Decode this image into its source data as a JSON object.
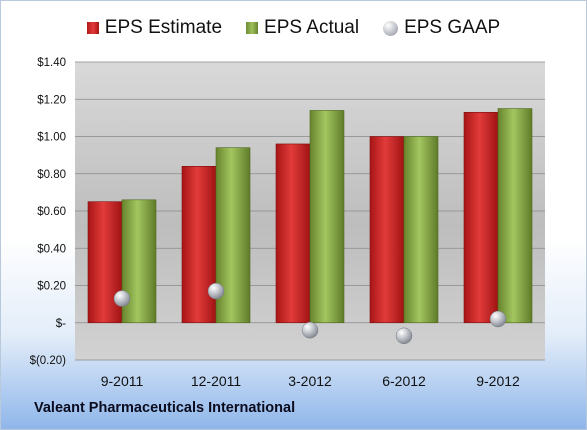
{
  "chart_data": {
    "type": "bar",
    "categories": [
      "9-2011",
      "12-2011",
      "3-2012",
      "6-2012",
      "9-2012"
    ],
    "series": [
      {
        "name": "EPS Estimate",
        "kind": "bar",
        "color": "#d42a2a",
        "values": [
          0.65,
          0.84,
          0.96,
          1.0,
          1.13
        ]
      },
      {
        "name": "EPS Actual",
        "kind": "bar",
        "color": "#8db04b",
        "values": [
          0.66,
          0.94,
          1.14,
          1.0,
          1.15
        ]
      },
      {
        "name": "EPS GAAP",
        "kind": "marker",
        "color": "#a8acb4",
        "values": [
          0.13,
          0.17,
          -0.04,
          -0.07,
          0.02
        ]
      }
    ],
    "ylim": [
      -0.2,
      1.4
    ],
    "yticks": [
      -0.2,
      0,
      0.2,
      0.4,
      0.6,
      0.8,
      1.0,
      1.2,
      1.4
    ],
    "ytick_labels": [
      "$(0.20)",
      "$-",
      "$0.20",
      "$0.40",
      "$0.60",
      "$0.80",
      "$1.00",
      "$1.20",
      "$1.40"
    ],
    "grid": true,
    "legend": "top"
  },
  "footer": {
    "company": "Valeant Pharmaceuticals International"
  }
}
